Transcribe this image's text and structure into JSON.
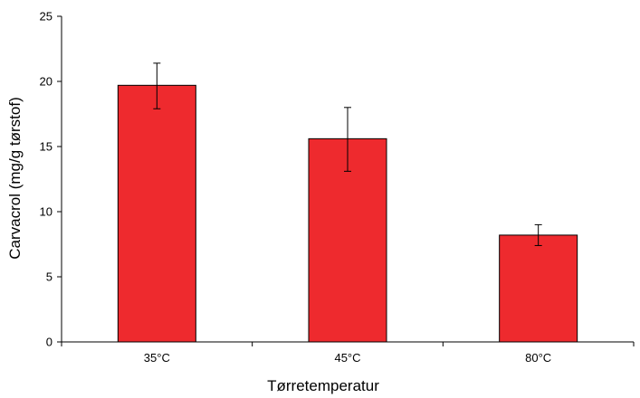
{
  "chart_data": {
    "type": "bar",
    "categories": [
      "35°C",
      "45°C",
      "80°C"
    ],
    "values": [
      19.7,
      15.6,
      8.2
    ],
    "error_low": [
      17.9,
      13.1,
      7.4
    ],
    "error_high": [
      21.4,
      18.0,
      9.0
    ],
    "title": "",
    "xlabel": "Tørretemperatur",
    "ylabel": "Carvacrol (mg/g tørstof)",
    "ylim": [
      0,
      25
    ],
    "yticks": [
      0,
      5,
      10,
      15,
      20,
      25
    ],
    "grid": false,
    "legend": "none",
    "bar_color": "#ee2a2e"
  }
}
